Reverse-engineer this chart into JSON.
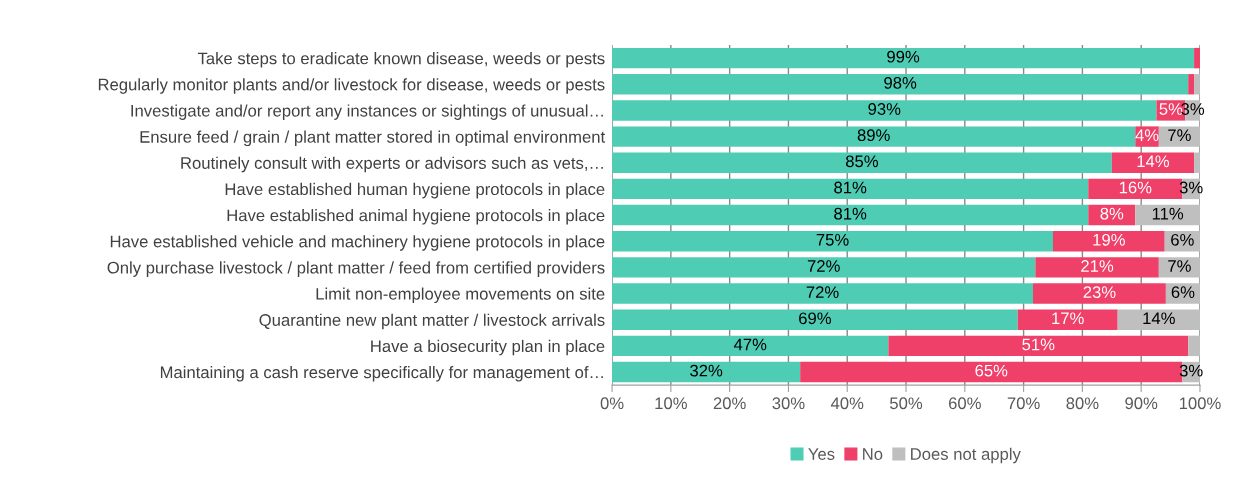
{
  "chart_data": {
    "type": "bar",
    "orientation": "horizontal",
    "stacked": true,
    "legend": "bottom",
    "grid": "x",
    "categories": [
      "Take steps to eradicate known disease, weeds or pests",
      "Regularly monitor plants and/or livestock for disease, weeds or pests",
      "Investigate and/or report any instances or sightings of unusual…",
      "Ensure feed / grain / plant matter stored in optimal environment",
      "Routinely consult with experts or advisors such as vets,…",
      "Have established human hygiene protocols in place",
      "Have established animal hygiene protocols in place",
      "Have established vehicle and machinery hygiene protocols in place",
      "Only purchase livestock / plant matter / feed from certified providers",
      "Limit non-employee movements on site",
      "Quarantine new plant matter / livestock arrivals",
      "Have a biosecurity plan in place",
      "Maintaining a cash reserve specifically for management of…"
    ],
    "xlim": [
      0,
      100
    ],
    "xticks": [
      {
        "value": 0,
        "label": "0%"
      },
      {
        "value": 10,
        "label": "10%"
      },
      {
        "value": 20,
        "label": "20%"
      },
      {
        "value": 30,
        "label": "30%"
      },
      {
        "value": 40,
        "label": "40%"
      },
      {
        "value": 50,
        "label": "50%"
      },
      {
        "value": 60,
        "label": "60%"
      },
      {
        "value": 70,
        "label": "70%"
      },
      {
        "value": 80,
        "label": "80%"
      },
      {
        "value": 90,
        "label": "90%"
      },
      {
        "value": 100,
        "label": "100%"
      }
    ],
    "series": [
      {
        "name": "Yes",
        "color": "#4ecdb4",
        "values": [
          99,
          98,
          92.6,
          89,
          85,
          81,
          81,
          75,
          72,
          71.6,
          69,
          47,
          32
        ],
        "value_labels": [
          "99%",
          "98%",
          "93%",
          "89%",
          "85%",
          "81%",
          "81%",
          "75%",
          "72%",
          "72%",
          "69%",
          "47%",
          "32%"
        ]
      },
      {
        "name": "No",
        "color": "#ee4069",
        "values": [
          1,
          1,
          4.9,
          4,
          14,
          16,
          8,
          19,
          21,
          22.6,
          17,
          51,
          65
        ],
        "value_labels": [
          null,
          null,
          "5%",
          "4%",
          "14%",
          "16%",
          "8%",
          "19%",
          "21%",
          "23%",
          "17%",
          "51%",
          "65%"
        ]
      },
      {
        "name": "Does not apply",
        "color": "#bfbfbf",
        "values": [
          0,
          1,
          2.5,
          7,
          1,
          3,
          11,
          6,
          7,
          5.8,
          14,
          2,
          3
        ],
        "value_labels": [
          null,
          null,
          "3%",
          "7%",
          null,
          "3%",
          "11%",
          "6%",
          "7%",
          "6%",
          "14%",
          null,
          "3%"
        ]
      }
    ]
  }
}
